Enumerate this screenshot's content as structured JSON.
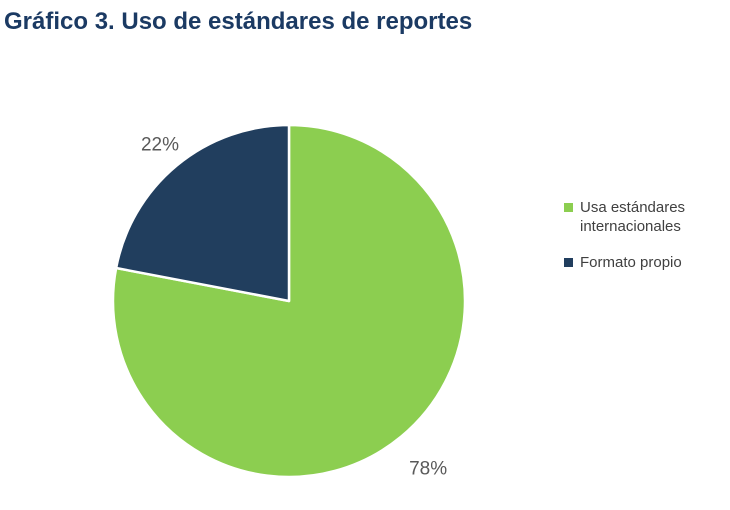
{
  "chart_data": {
    "type": "pie",
    "title": "Gráfico 3. Uso de estándares de reportes",
    "title_color": "#1B3A63",
    "slices": [
      {
        "label": "Usa estándares internacionales",
        "value": 78,
        "pct_label": "78%",
        "color": "#8CCE50",
        "label_radius": 1.24
      },
      {
        "label": "Formato propio",
        "value": 22,
        "pct_label": "22%",
        "color": "#213E5E",
        "label_radius": 1.15
      }
    ],
    "start_angle_deg": 0,
    "direction": "clockwise",
    "legend_position": "right",
    "data_labels": "outside",
    "data_label_color": "#595959",
    "separator_color": "#FFFFFF",
    "background": "#FFFFFF"
  }
}
